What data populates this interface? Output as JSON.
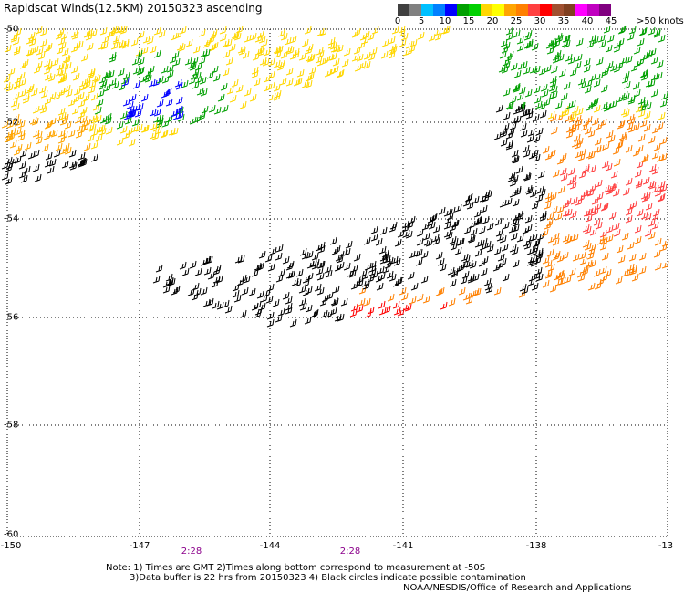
{
  "title": "Rapidscat Winds(12.5KM) 20150323 ascending",
  "legend": {
    "labels": [
      "0",
      "5",
      "10",
      "15",
      "20",
      "25",
      "30",
      "35",
      "40",
      "45",
      ">50 knots"
    ],
    "colors": [
      "#404040",
      "#808080",
      "#00c0ff",
      "#0080ff",
      "#0000ff",
      "#00a000",
      "#00d000",
      "#ffd700",
      "#ffff00",
      "#ffa500",
      "#ff8000",
      "#ff4040",
      "#ff0000",
      "#a05030",
      "#804020",
      "#ff00ff",
      "#c000c0",
      "#800080"
    ]
  },
  "axes": {
    "lat_ticks": [
      "-50",
      "-52",
      "-54",
      "-56",
      "-58",
      "-60"
    ],
    "lon_ticks": [
      "-150",
      "-147",
      "-144",
      "-141",
      "-138",
      "-13"
    ],
    "lat_range": [
      -60,
      -50
    ],
    "lon_range": [
      -150,
      -135
    ]
  },
  "times": [
    "2:28",
    "2:28"
  ],
  "notes": {
    "line1": "Note: 1) Times are GMT 2)Times along bottom correspond to measurement at -50S",
    "line2": "3)Data buffer is 22 hrs from 20150323 4) Black circles indicate possible contamination",
    "credit": "NOAA/NESDIS/Office of Research and Applications"
  }
}
